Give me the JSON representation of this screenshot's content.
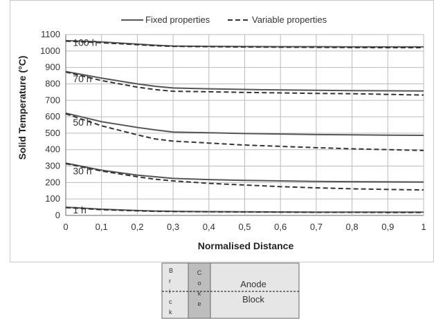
{
  "chart_data": {
    "type": "line",
    "title": "",
    "xlabel": "Normalised Distance",
    "ylabel": "Solid Temperature (°C)",
    "xlim": [
      0,
      1
    ],
    "ylim": [
      0,
      1100
    ],
    "x_ticks": [
      "0",
      "0,1",
      "0,2",
      "0,3",
      "0,4",
      "0,5",
      "0,6",
      "0,7",
      "0,8",
      "0,9",
      "1"
    ],
    "y_ticks": [
      "0",
      "100",
      "200",
      "300",
      "400",
      "500",
      "600",
      "700",
      "800",
      "900",
      "1000",
      "1100"
    ],
    "grid": true,
    "legend_position": "top",
    "legend": [
      {
        "label": "Fixed properties",
        "style": "solid"
      },
      {
        "label": "Variable properties",
        "style": "dashed"
      }
    ],
    "x": [
      0,
      0.1,
      0.2,
      0.25,
      0.3,
      0.4,
      0.5,
      0.6,
      0.7,
      0.8,
      0.9,
      1.0
    ],
    "curves": [
      {
        "time_label": "100 h",
        "fixed": [
          1063,
          1055,
          1042,
          1035,
          1030,
          1028,
          1027,
          1026,
          1026,
          1025,
          1025,
          1025
        ],
        "variable": [
          1060,
          1050,
          1038,
          1032,
          1028,
          1026,
          1024,
          1023,
          1022,
          1021,
          1020,
          1020
        ]
      },
      {
        "time_label": "70 h",
        "fixed": [
          875,
          835,
          800,
          785,
          775,
          770,
          766,
          763,
          761,
          759,
          758,
          757
        ],
        "variable": [
          872,
          820,
          780,
          765,
          755,
          752,
          748,
          745,
          742,
          740,
          736,
          732
        ]
      },
      {
        "time_label": "50 h",
        "fixed": [
          622,
          570,
          535,
          520,
          507,
          503,
          498,
          495,
          492,
          490,
          488,
          487
        ],
        "variable": [
          618,
          545,
          490,
          465,
          452,
          440,
          428,
          420,
          412,
          405,
          400,
          395
        ]
      },
      {
        "time_label": "30 h",
        "fixed": [
          318,
          275,
          245,
          235,
          225,
          218,
          213,
          210,
          207,
          205,
          204,
          203
        ],
        "variable": [
          315,
          270,
          235,
          220,
          210,
          195,
          185,
          175,
          168,
          162,
          158,
          155
        ]
      },
      {
        "time_label": "1 h",
        "fixed": [
          50,
          38,
          30,
          27,
          25,
          23,
          22,
          21,
          20,
          20,
          20,
          20
        ],
        "variable": [
          48,
          35,
          28,
          25,
          24,
          22,
          21,
          20,
          19,
          19,
          18,
          18
        ]
      }
    ]
  },
  "schematic": {
    "brick_letters": [
      "B",
      "r",
      "i",
      "c",
      "k"
    ],
    "coke_letters": [
      "C",
      "o",
      "k",
      "e"
    ],
    "anode_line1": "Anode",
    "anode_line2": "Block"
  },
  "colors": {
    "fixed_line": "#555555",
    "variable_line": "#333333",
    "grid": "#bbbbbb",
    "coke_fill": "#bdbdbd",
    "block_fill": "#e6e6e6"
  }
}
